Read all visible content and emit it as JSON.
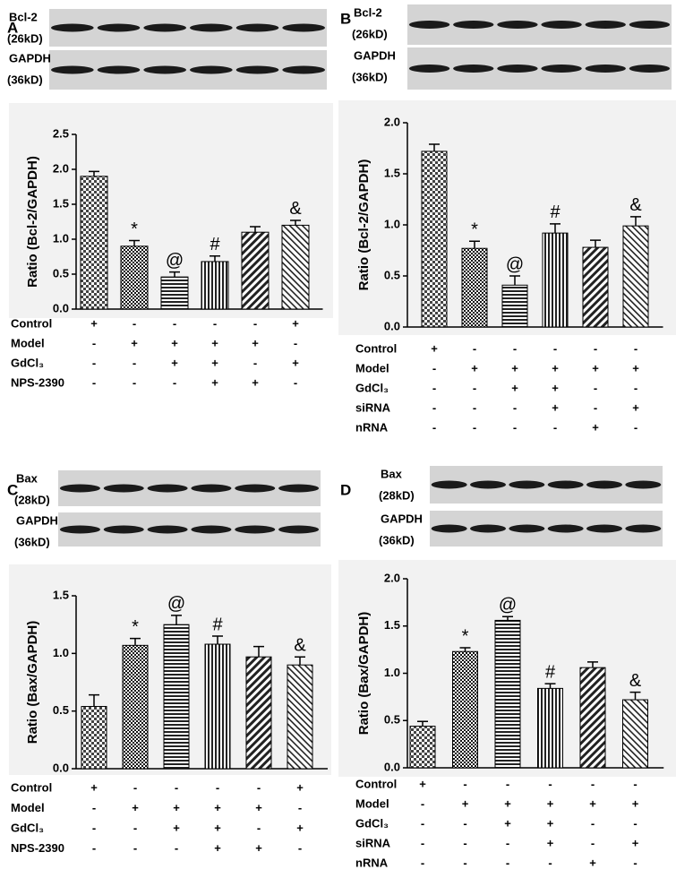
{
  "chart_data": [
    {
      "type": "bar",
      "panel": "A",
      "blot": {
        "protein": "Bcl-2",
        "protein_size": "(26kD)",
        "control": "GAPDH",
        "control_size": "(36kD)"
      },
      "y_label": "Ratio (Bcl-2/GAPDH)",
      "ylim": [
        0,
        2.5
      ],
      "yticks": [
        {
          "value": 0,
          "label": "0.0"
        },
        0.5,
        {
          "value": 1,
          "label": "1.0"
        },
        1.5,
        {
          "value": 2,
          "label": "2.0"
        },
        2.5
      ],
      "values": [
        1.9,
        0.9,
        0.46,
        0.68,
        1.1,
        1.2
      ],
      "errors": [
        0.07,
        0.08,
        0.07,
        0.08,
        0.08,
        0.07
      ],
      "annotations": [
        null,
        "*",
        "@",
        "#",
        null,
        "&"
      ],
      "conditions": [
        {
          "name": "Control",
          "signs": [
            "+",
            "-",
            "-",
            "-",
            "-",
            "+"
          ]
        },
        {
          "name": "Model",
          "signs": [
            "-",
            "+",
            "+",
            "+",
            "+",
            "-"
          ]
        },
        {
          "name": "GdCl₃",
          "signs": [
            "-",
            "-",
            "+",
            "+",
            "-",
            "+"
          ]
        },
        {
          "name": "NPS-2390",
          "signs": [
            "-",
            "-",
            "-",
            "+",
            "+",
            "-"
          ]
        }
      ]
    },
    {
      "type": "bar",
      "panel": "B",
      "blot": {
        "protein": "Bcl-2",
        "protein_size": "(26kD)",
        "control": "GAPDH",
        "control_size": "(36kD)"
      },
      "y_label": "Ratio (Bcl-2/GAPDH)",
      "ylim": [
        0,
        2
      ],
      "yticks": [
        {
          "value": 0,
          "label": "0.0"
        },
        0.5,
        {
          "value": 1,
          "label": "1.0"
        },
        1.5,
        {
          "value": 2,
          "label": "2.0"
        }
      ],
      "values": [
        1.72,
        0.77,
        0.41,
        0.92,
        0.78,
        0.99
      ],
      "errors": [
        0.07,
        0.07,
        0.09,
        0.09,
        0.07,
        0.09
      ],
      "annotations": [
        null,
        "*",
        "@",
        "#",
        null,
        "&"
      ],
      "conditions": [
        {
          "name": "Control",
          "signs": [
            "+",
            "-",
            "-",
            "-",
            "-",
            "-"
          ]
        },
        {
          "name": "Model",
          "signs": [
            "-",
            "+",
            "+",
            "+",
            "+",
            "+"
          ]
        },
        {
          "name": "GdCl₃",
          "signs": [
            "-",
            "-",
            "+",
            "+",
            "-",
            "-"
          ]
        },
        {
          "name": "siRNA",
          "signs": [
            "-",
            "-",
            "-",
            "+",
            "-",
            "+"
          ]
        },
        {
          "name": "nRNA",
          "signs": [
            "-",
            "-",
            "-",
            "-",
            "+",
            "-"
          ]
        }
      ]
    },
    {
      "type": "bar",
      "panel": "C",
      "blot": {
        "protein": "Bax",
        "protein_size": "(28kD)",
        "control": "GAPDH",
        "control_size": "(36kD)"
      },
      "y_label": "Ratio (Bax/GAPDH)",
      "ylim": [
        0,
        1.5
      ],
      "yticks": [
        {
          "value": 0,
          "label": "0.0"
        },
        0.5,
        {
          "value": 1,
          "label": "1.0"
        },
        1.5
      ],
      "values": [
        0.54,
        1.07,
        1.25,
        1.08,
        0.97,
        0.9
      ],
      "errors": [
        0.1,
        0.06,
        0.08,
        0.07,
        0.09,
        0.07
      ],
      "annotations": [
        null,
        "*",
        "@",
        "#",
        null,
        "&"
      ],
      "conditions": [
        {
          "name": "Control",
          "signs": [
            "+",
            "-",
            "-",
            "-",
            "-",
            "+"
          ]
        },
        {
          "name": "Model",
          "signs": [
            "-",
            "+",
            "+",
            "+",
            "+",
            "-"
          ]
        },
        {
          "name": "GdCl₃",
          "signs": [
            "-",
            "-",
            "+",
            "+",
            "-",
            "+"
          ]
        },
        {
          "name": "NPS-2390",
          "signs": [
            "-",
            "-",
            "-",
            "+",
            "+",
            "-"
          ]
        }
      ]
    },
    {
      "type": "bar",
      "panel": "D",
      "blot": {
        "protein": "Bax",
        "protein_size": "(28kD)",
        "control": "GAPDH",
        "control_size": "(36kD)"
      },
      "y_label": "Ratio (Bax/GAPDH)",
      "ylim": [
        0,
        2
      ],
      "yticks": [
        {
          "value": 0,
          "label": "0.0"
        },
        0.5,
        {
          "value": 1,
          "label": "1.0"
        },
        1.5,
        {
          "value": 2,
          "label": "2.0"
        }
      ],
      "values": [
        0.44,
        1.23,
        1.56,
        0.84,
        1.06,
        0.72
      ],
      "errors": [
        0.05,
        0.04,
        0.04,
        0.05,
        0.06,
        0.08
      ],
      "annotations": [
        null,
        "*",
        "@",
        "#",
        null,
        "&"
      ],
      "conditions": [
        {
          "name": "Control",
          "signs": [
            "+",
            "-",
            "-",
            "-",
            "-",
            "-"
          ]
        },
        {
          "name": "Model",
          "signs": [
            "-",
            "+",
            "+",
            "+",
            "+",
            "+"
          ]
        },
        {
          "name": "GdCl₃",
          "signs": [
            "-",
            "-",
            "+",
            "+",
            "-",
            "-"
          ]
        },
        {
          "name": "siRNA",
          "signs": [
            "-",
            "-",
            "-",
            "+",
            "-",
            "+"
          ]
        },
        {
          "name": "nRNA",
          "signs": [
            "-",
            "-",
            "-",
            "-",
            "+",
            "-"
          ]
        }
      ]
    }
  ]
}
